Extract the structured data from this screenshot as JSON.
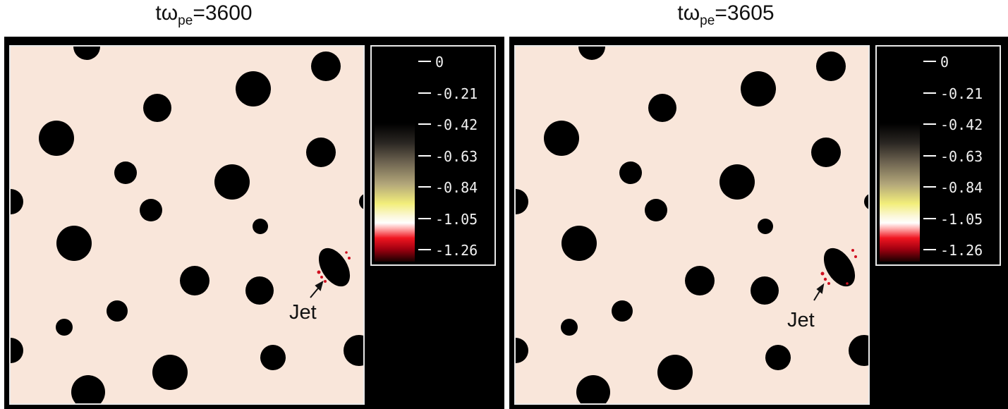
{
  "panels": [
    {
      "title_prefix": "tω",
      "title_sub": "pe",
      "title_suffix": "=3600",
      "annotation": "Jet"
    },
    {
      "title_prefix": "tω",
      "title_sub": "pe",
      "title_suffix": "=3605",
      "annotation": "Jet"
    }
  ],
  "colorbar": {
    "ticks": [
      "0",
      "-0.21",
      "-0.42",
      "-0.63",
      "-0.84",
      "-1.05",
      "-1.26"
    ]
  },
  "colors": {
    "background_field": "#f9e6da",
    "dust_grain": "#000000",
    "frame": "#000000",
    "jet_red": "#d01020"
  }
}
